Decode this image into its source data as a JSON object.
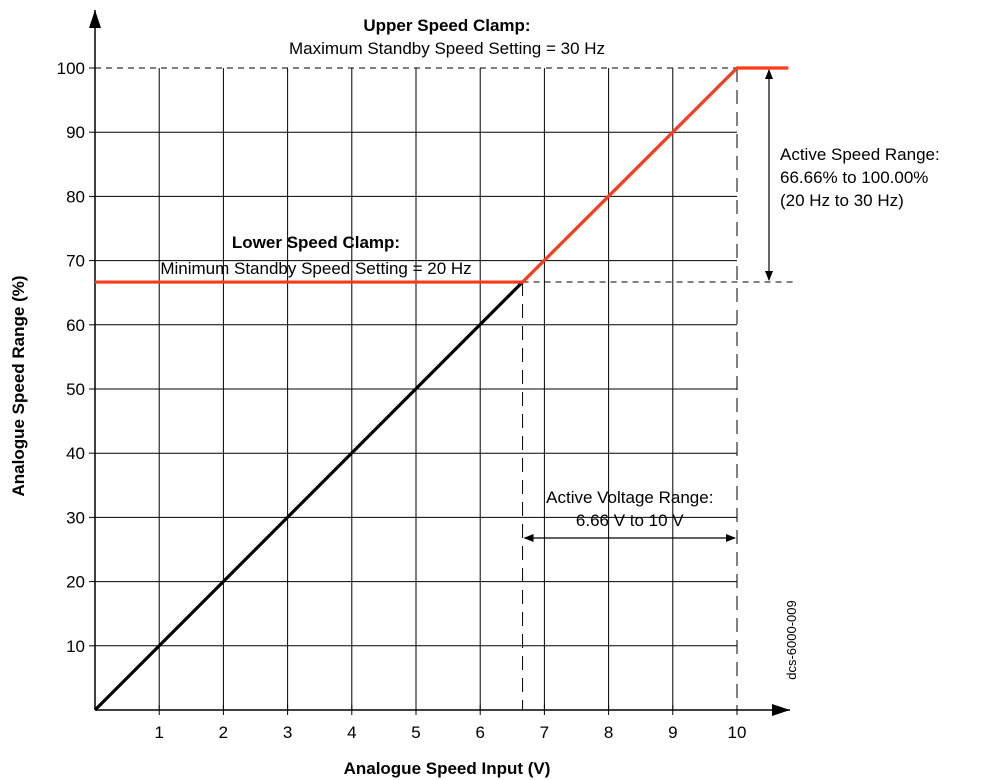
{
  "chart_data": {
    "type": "line",
    "xlabel": "Analogue Speed Input (V)",
    "ylabel": "Analogue Speed Range (%)",
    "xlim": [
      0,
      10.8
    ],
    "ylim": [
      0,
      100
    ],
    "x_ticks": [
      1,
      2,
      3,
      4,
      5,
      6,
      7,
      8,
      9,
      10
    ],
    "y_ticks": [
      10,
      20,
      30,
      40,
      50,
      60,
      70,
      80,
      90,
      100
    ],
    "grid": true,
    "series": [
      {
        "color": "#000000",
        "x": [
          0,
          6.66
        ],
        "y": [
          0,
          66.66
        ]
      },
      {
        "color": "#ff3a1a",
        "x": [
          0,
          6.66,
          10,
          10.8
        ],
        "y": [
          66.66,
          66.66,
          100,
          100
        ]
      }
    ],
    "reference_lines": {
      "lower_clamp_y": 66.66,
      "upper_clamp_y": 100,
      "active_voltage_start_x": 6.66,
      "active_voltage_end_x": 10
    },
    "annotations": {
      "upper_clamp": {
        "title": "Upper Speed Clamp:",
        "text": "Maximum Standby Speed Setting = 30 Hz"
      },
      "lower_clamp": {
        "title": "Lower Speed Clamp:",
        "text": "Minimum Standby Speed Setting = 20 Hz"
      },
      "active_speed_range": [
        "Active Speed Range:",
        "66.66% to 100.00%",
        "(20 Hz to 30 Hz)"
      ],
      "active_voltage_range": [
        "Active Voltage Range:",
        "6.66 V to 10 V"
      ],
      "figure_code": "dcs-6000-009"
    }
  }
}
